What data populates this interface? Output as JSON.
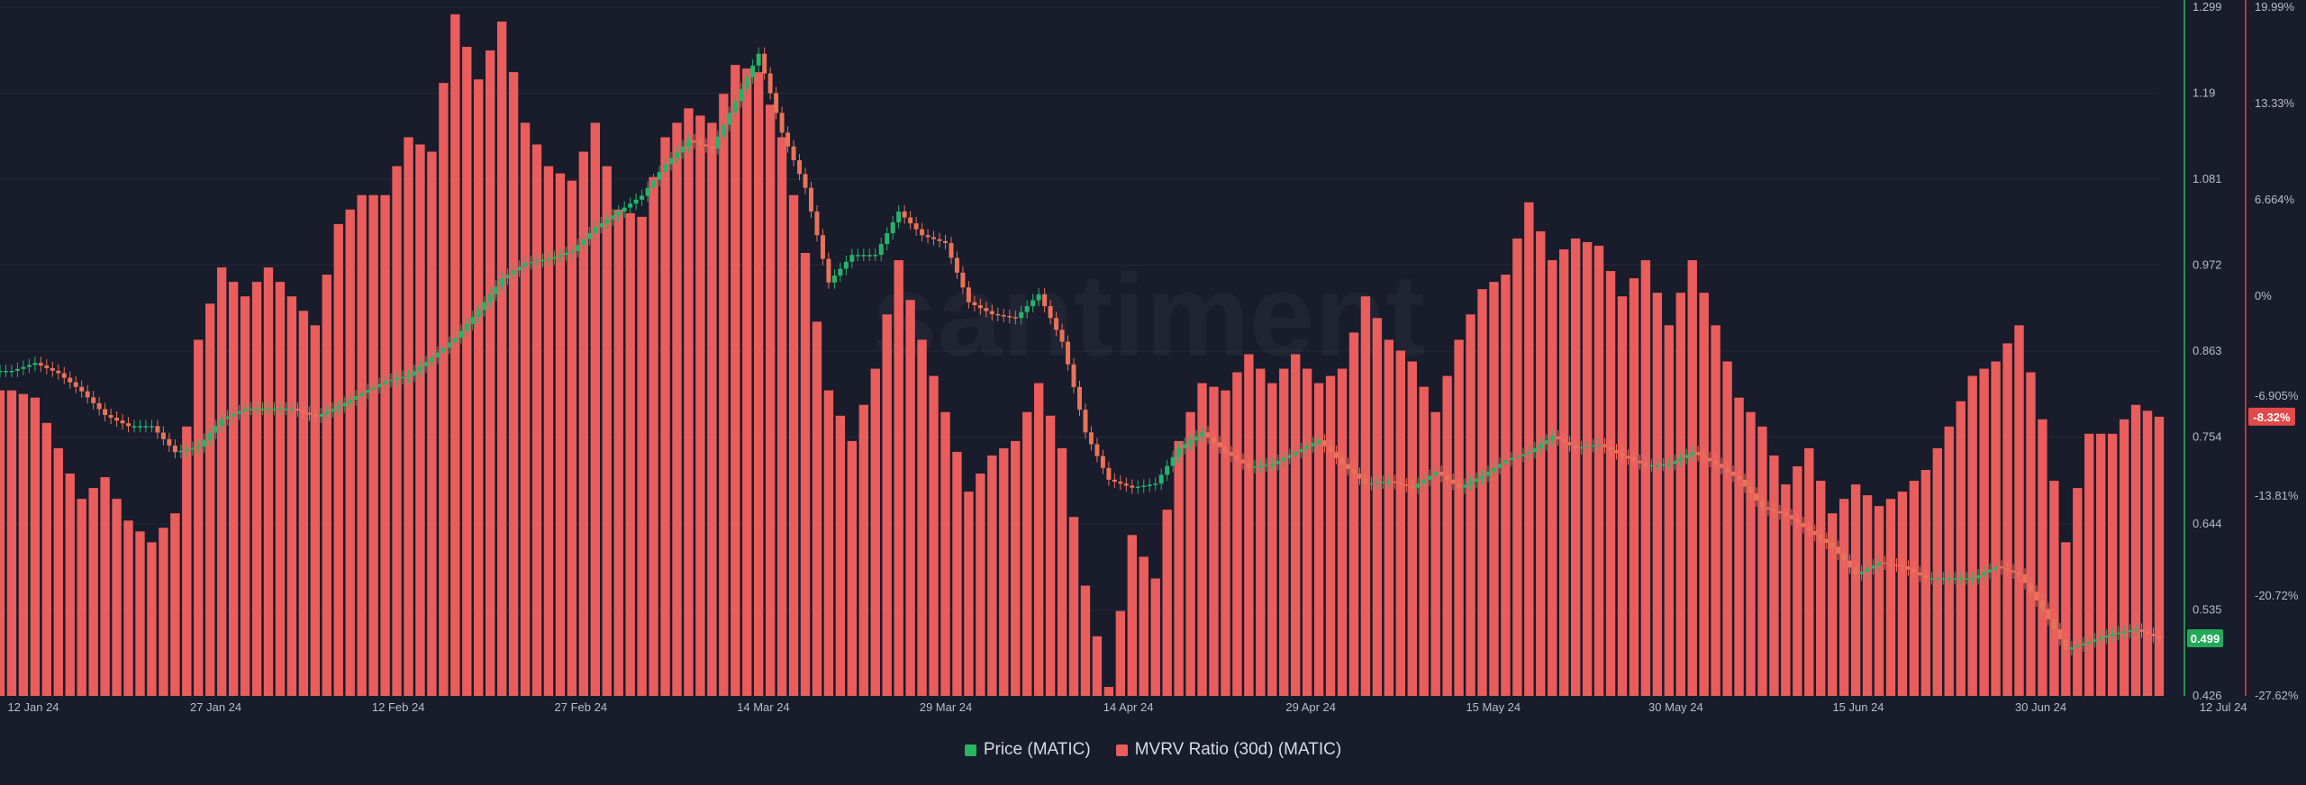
{
  "chart_data": {
    "type": "bar",
    "watermark": "santiment",
    "x_ticks": [
      "12 Jan 24",
      "27 Jan 24",
      "12 Feb 24",
      "27 Feb 24",
      "14 Mar 24",
      "29 Mar 24",
      "14 Apr 24",
      "29 Apr 24",
      "15 May 24",
      "30 May 24",
      "15 Jun 24",
      "30 Jun 24",
      "12 Jul 24"
    ],
    "y_price_ticks": [
      "1.299",
      "1.19",
      "1.081",
      "0.972",
      "0.863",
      "0.754",
      "0.644",
      "0.535",
      "0.426"
    ],
    "y_price_range": [
      0.426,
      1.299
    ],
    "y_mvrv_ticks": [
      "19.99%",
      "13.33%",
      "6.664%",
      "0%",
      "-6.905%",
      "-13.81%",
      "-20.72%",
      "-27.62%"
    ],
    "y_mvrv_range": [
      -27.62,
      19.99
    ],
    "current_price_label": "0.499",
    "current_mvrv_label": "-8.32%",
    "colors": {
      "background": "#181c2b",
      "mvrv": "#ea5d5d",
      "price_up": "#26b36b",
      "price_down": "#e8735a",
      "price_axis": "#2fb55f",
      "mvrv_axis": "#e04747"
    },
    "series": [
      {
        "name": "MVRV Ratio (30d) (MATIC)",
        "type": "bar",
        "points": [
          [
            "2024-01-10",
            -6.5
          ],
          [
            "2024-01-12",
            -7.0
          ],
          [
            "2024-01-14",
            -10.5
          ],
          [
            "2024-01-16",
            -14.0
          ],
          [
            "2024-01-18",
            -12.5
          ],
          [
            "2024-01-20",
            -15.5
          ],
          [
            "2024-01-22",
            -17.0
          ],
          [
            "2024-01-24",
            -15.0
          ],
          [
            "2024-01-26",
            -3.0
          ],
          [
            "2024-01-28",
            2.0
          ],
          [
            "2024-01-30",
            0.0
          ],
          [
            "2024-02-01",
            2.0
          ],
          [
            "2024-02-03",
            0.0
          ],
          [
            "2024-02-05",
            -2.0
          ],
          [
            "2024-02-07",
            5.0
          ],
          [
            "2024-02-09",
            7.0
          ],
          [
            "2024-02-11",
            7.0
          ],
          [
            "2024-02-13",
            11.0
          ],
          [
            "2024-02-15",
            10.0
          ],
          [
            "2024-02-17",
            19.5
          ],
          [
            "2024-02-19",
            15.0
          ],
          [
            "2024-02-21",
            19.0
          ],
          [
            "2024-02-23",
            12.0
          ],
          [
            "2024-02-25",
            9.0
          ],
          [
            "2024-02-27",
            8.0
          ],
          [
            "2024-02-29",
            12.0
          ],
          [
            "2024-03-02",
            6.0
          ],
          [
            "2024-03-04",
            5.5
          ],
          [
            "2024-03-06",
            11.0
          ],
          [
            "2024-03-08",
            13.0
          ],
          [
            "2024-03-10",
            12.0
          ],
          [
            "2024-03-12",
            16.0
          ],
          [
            "2024-03-14",
            15.5
          ],
          [
            "2024-03-16",
            11.0
          ],
          [
            "2024-03-18",
            3.0
          ],
          [
            "2024-03-20",
            -6.5
          ],
          [
            "2024-03-22",
            -10.0
          ],
          [
            "2024-03-24",
            -5.0
          ],
          [
            "2024-03-26",
            2.5
          ],
          [
            "2024-03-28",
            -3.0
          ],
          [
            "2024-03-30",
            -8.0
          ],
          [
            "2024-04-01",
            -13.5
          ],
          [
            "2024-04-03",
            -11.0
          ],
          [
            "2024-04-05",
            -10.0
          ],
          [
            "2024-04-07",
            -6.0
          ],
          [
            "2024-04-09",
            -10.5
          ],
          [
            "2024-04-11",
            -20.0
          ],
          [
            "2024-04-13",
            -27.0
          ],
          [
            "2024-04-15",
            -16.5
          ],
          [
            "2024-04-17",
            -19.5
          ],
          [
            "2024-04-19",
            -10.0
          ],
          [
            "2024-04-21",
            -6.0
          ],
          [
            "2024-04-23",
            -6.5
          ],
          [
            "2024-04-25",
            -4.0
          ],
          [
            "2024-04-27",
            -6.0
          ],
          [
            "2024-04-29",
            -4.0
          ],
          [
            "2024-05-01",
            -6.0
          ],
          [
            "2024-05-03",
            -5.0
          ],
          [
            "2024-05-05",
            0.0
          ],
          [
            "2024-05-07",
            -3.0
          ],
          [
            "2024-05-09",
            -4.5
          ],
          [
            "2024-05-11",
            -8.0
          ],
          [
            "2024-05-13",
            -3.0
          ],
          [
            "2024-05-15",
            0.5
          ],
          [
            "2024-05-17",
            1.5
          ],
          [
            "2024-05-19",
            6.5
          ],
          [
            "2024-05-21",
            2.5
          ],
          [
            "2024-05-23",
            4.0
          ],
          [
            "2024-05-25",
            3.5
          ],
          [
            "2024-05-27",
            0.0
          ],
          [
            "2024-05-29",
            2.5
          ],
          [
            "2024-05-31",
            -2.0
          ],
          [
            "2024-06-02",
            2.5
          ],
          [
            "2024-06-04",
            -2.0
          ],
          [
            "2024-06-06",
            -7.0
          ],
          [
            "2024-06-08",
            -9.0
          ],
          [
            "2024-06-10",
            -13.0
          ],
          [
            "2024-06-12",
            -10.5
          ],
          [
            "2024-06-14",
            -15.0
          ],
          [
            "2024-06-16",
            -13.0
          ],
          [
            "2024-06-18",
            -14.5
          ],
          [
            "2024-06-20",
            -13.5
          ],
          [
            "2024-06-22",
            -12.0
          ],
          [
            "2024-06-24",
            -9.0
          ],
          [
            "2024-06-26",
            -5.5
          ],
          [
            "2024-06-28",
            -4.5
          ],
          [
            "2024-06-30",
            -2.0
          ],
          [
            "2024-07-02",
            -8.5
          ],
          [
            "2024-07-04",
            -17.0
          ],
          [
            "2024-07-06",
            -9.5
          ],
          [
            "2024-07-08",
            -9.5
          ],
          [
            "2024-07-10",
            -7.5
          ],
          [
            "2024-07-12",
            -8.32
          ]
        ]
      },
      {
        "name": "Price (MATIC)",
        "type": "candlestick",
        "points": [
          [
            "2024-01-10",
            0.838
          ],
          [
            "2024-01-12",
            0.848
          ],
          [
            "2024-01-14",
            0.835
          ],
          [
            "2024-01-16",
            0.812
          ],
          [
            "2024-01-18",
            0.782
          ],
          [
            "2024-01-20",
            0.768
          ],
          [
            "2024-01-22",
            0.768
          ],
          [
            "2024-01-24",
            0.735
          ],
          [
            "2024-01-26",
            0.742
          ],
          [
            "2024-01-28",
            0.777
          ],
          [
            "2024-01-30",
            0.79
          ],
          [
            "2024-02-01",
            0.79
          ],
          [
            "2024-02-03",
            0.79
          ],
          [
            "2024-02-05",
            0.78
          ],
          [
            "2024-02-07",
            0.793
          ],
          [
            "2024-02-09",
            0.81
          ],
          [
            "2024-02-11",
            0.825
          ],
          [
            "2024-02-13",
            0.832
          ],
          [
            "2024-02-15",
            0.855
          ],
          [
            "2024-02-17",
            0.88
          ],
          [
            "2024-02-19",
            0.915
          ],
          [
            "2024-02-21",
            0.955
          ],
          [
            "2024-02-23",
            0.975
          ],
          [
            "2024-02-25",
            0.98
          ],
          [
            "2024-02-27",
            0.99
          ],
          [
            "2024-02-29",
            1.02
          ],
          [
            "2024-03-02",
            1.04
          ],
          [
            "2024-03-04",
            1.06
          ],
          [
            "2024-03-06",
            1.1
          ],
          [
            "2024-03-08",
            1.13
          ],
          [
            "2024-03-10",
            1.12
          ],
          [
            "2024-03-12",
            1.18
          ],
          [
            "2024-03-14",
            1.24
          ],
          [
            "2024-03-16",
            1.14
          ],
          [
            "2024-03-18",
            1.07
          ],
          [
            "2024-03-20",
            0.95
          ],
          [
            "2024-03-22",
            0.985
          ],
          [
            "2024-03-24",
            0.985
          ],
          [
            "2024-03-26",
            1.04
          ],
          [
            "2024-03-28",
            1.01
          ],
          [
            "2024-03-30",
            1.0
          ],
          [
            "2024-04-01",
            0.925
          ],
          [
            "2024-04-03",
            0.91
          ],
          [
            "2024-04-05",
            0.905
          ],
          [
            "2024-04-07",
            0.935
          ],
          [
            "2024-04-09",
            0.875
          ],
          [
            "2024-04-11",
            0.76
          ],
          [
            "2024-04-13",
            0.7
          ],
          [
            "2024-04-15",
            0.69
          ],
          [
            "2024-04-17",
            0.695
          ],
          [
            "2024-04-19",
            0.74
          ],
          [
            "2024-04-21",
            0.76
          ],
          [
            "2024-04-23",
            0.735
          ],
          [
            "2024-04-25",
            0.716
          ],
          [
            "2024-04-27",
            0.72
          ],
          [
            "2024-04-29",
            0.735
          ],
          [
            "2024-05-01",
            0.75
          ],
          [
            "2024-05-03",
            0.72
          ],
          [
            "2024-05-05",
            0.695
          ],
          [
            "2024-05-07",
            0.698
          ],
          [
            "2024-05-09",
            0.69
          ],
          [
            "2024-05-11",
            0.71
          ],
          [
            "2024-05-13",
            0.69
          ],
          [
            "2024-05-15",
            0.705
          ],
          [
            "2024-05-17",
            0.725
          ],
          [
            "2024-05-19",
            0.735
          ],
          [
            "2024-05-21",
            0.755
          ],
          [
            "2024-05-23",
            0.74
          ],
          [
            "2024-05-25",
            0.745
          ],
          [
            "2024-05-27",
            0.73
          ],
          [
            "2024-05-29",
            0.718
          ],
          [
            "2024-05-31",
            0.72
          ],
          [
            "2024-06-02",
            0.735
          ],
          [
            "2024-06-04",
            0.72
          ],
          [
            "2024-06-06",
            0.7
          ],
          [
            "2024-06-08",
            0.665
          ],
          [
            "2024-06-10",
            0.655
          ],
          [
            "2024-06-12",
            0.635
          ],
          [
            "2024-06-14",
            0.615
          ],
          [
            "2024-06-16",
            0.58
          ],
          [
            "2024-06-18",
            0.595
          ],
          [
            "2024-06-20",
            0.59
          ],
          [
            "2024-06-22",
            0.575
          ],
          [
            "2024-06-24",
            0.575
          ],
          [
            "2024-06-26",
            0.575
          ],
          [
            "2024-06-28",
            0.59
          ],
          [
            "2024-06-30",
            0.58
          ],
          [
            "2024-07-02",
            0.536
          ],
          [
            "2024-07-04",
            0.485
          ],
          [
            "2024-07-06",
            0.495
          ],
          [
            "2024-07-08",
            0.505
          ],
          [
            "2024-07-10",
            0.51
          ],
          [
            "2024-07-12",
            0.499
          ]
        ]
      }
    ]
  },
  "legend": {
    "price_label": "Price (MATIC)",
    "mvrv_label": "MVRV Ratio (30d) (MATIC)"
  }
}
